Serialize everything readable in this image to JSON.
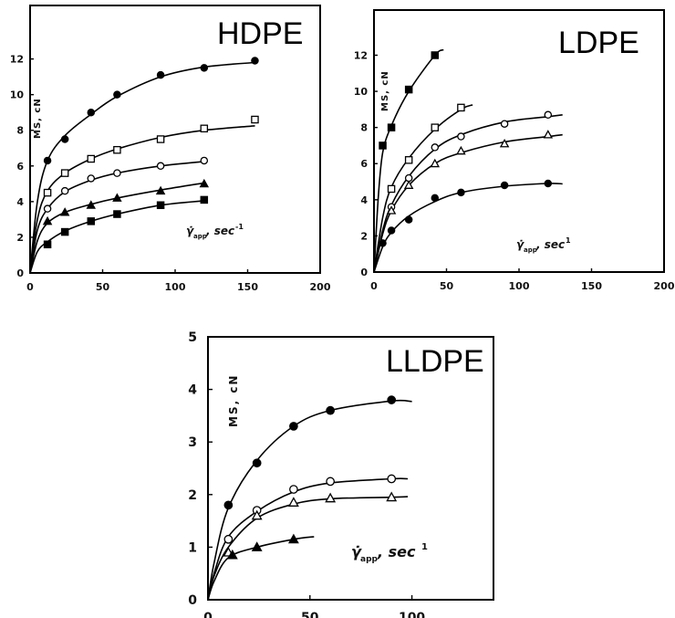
{
  "chart_data": [
    {
      "type": "scatter",
      "title": "HDPE",
      "ylabel": "MS, cN",
      "xlabel": {
        "symbol": "γ̇",
        "subscript": "app",
        "unit": ", sec",
        "superscript": "-1"
      },
      "xlim": [
        0,
        200
      ],
      "ylim": [
        0,
        15
      ],
      "xticks": [
        0,
        50,
        100,
        150,
        200
      ],
      "yticks": [
        0,
        2,
        4,
        6,
        8,
        10,
        12
      ],
      "grid": false,
      "series": [
        {
          "marker": "filled-circle",
          "x": [
            12,
            24,
            42,
            60,
            90,
            120,
            155
          ],
          "y": [
            6.3,
            7.5,
            9.0,
            10.0,
            11.1,
            11.5,
            11.9
          ]
        },
        {
          "marker": "open-square",
          "x": [
            12,
            24,
            42,
            60,
            90,
            120,
            155
          ],
          "y": [
            4.5,
            5.6,
            6.4,
            6.9,
            7.5,
            8.1,
            8.6
          ]
        },
        {
          "marker": "open-circle",
          "x": [
            12,
            24,
            42,
            60,
            90,
            120
          ],
          "y": [
            3.6,
            4.6,
            5.3,
            5.6,
            6.0,
            6.3
          ]
        },
        {
          "marker": "filled-triangle",
          "x": [
            12,
            24,
            42,
            60,
            90,
            120
          ],
          "y": [
            2.9,
            3.4,
            3.8,
            4.2,
            4.6,
            5.0
          ]
        },
        {
          "marker": "filled-square",
          "x": [
            12,
            24,
            42,
            60,
            90,
            120
          ],
          "y": [
            1.6,
            2.3,
            2.9,
            3.3,
            3.8,
            4.1
          ]
        }
      ]
    },
    {
      "type": "scatter",
      "title": "LDPE",
      "ylabel": "MS, cN",
      "xlabel": {
        "symbol": "γ̇",
        "subscript": "app",
        "unit": ", sec",
        "superscript": "1"
      },
      "xlim": [
        0,
        200
      ],
      "ylim": [
        0,
        14.5
      ],
      "xticks": [
        0,
        50,
        100,
        150,
        200
      ],
      "yticks": [
        0,
        2,
        4,
        6,
        8,
        10,
        12
      ],
      "grid": false,
      "series": [
        {
          "marker": "filled-square",
          "x": [
            6,
            12,
            24,
            42
          ],
          "y": [
            7.0,
            8.0,
            10.1,
            12.0
          ]
        },
        {
          "marker": "open-square",
          "x": [
            12,
            24,
            42,
            60
          ],
          "y": [
            4.6,
            6.2,
            8.0,
            9.1
          ]
        },
        {
          "marker": "open-circle",
          "x": [
            12,
            24,
            42,
            60,
            90,
            120
          ],
          "y": [
            3.6,
            5.2,
            6.9,
            7.5,
            8.2,
            8.7
          ]
        },
        {
          "marker": "open-triangle",
          "x": [
            12,
            24,
            42,
            60,
            90,
            120
          ],
          "y": [
            3.4,
            4.8,
            6.0,
            6.7,
            7.1,
            7.6
          ]
        },
        {
          "marker": "filled-circle",
          "x": [
            6,
            12,
            24,
            42,
            60,
            90,
            120
          ],
          "y": [
            1.6,
            2.3,
            2.9,
            4.1,
            4.4,
            4.8,
            4.9
          ]
        }
      ]
    },
    {
      "type": "scatter",
      "title": "LLDPE",
      "ylabel": "MS, cN",
      "xlabel": {
        "symbol": "γ̇",
        "subscript": "app",
        "unit": ", sec",
        "superscript": "1"
      },
      "xlim": [
        0,
        140
      ],
      "ylim": [
        0,
        5
      ],
      "xticks": [
        0,
        50,
        100
      ],
      "yticks": [
        0,
        1,
        2,
        3,
        4,
        5
      ],
      "grid": false,
      "series": [
        {
          "marker": "filled-circle",
          "x": [
            10,
            24,
            42,
            60,
            90
          ],
          "y": [
            1.8,
            2.6,
            3.3,
            3.6,
            3.8
          ]
        },
        {
          "marker": "open-circle",
          "x": [
            10,
            24,
            42,
            60,
            90
          ],
          "y": [
            1.15,
            1.7,
            2.1,
            2.25,
            2.3
          ]
        },
        {
          "marker": "open-triangle",
          "x": [
            10,
            24,
            42,
            60,
            90
          ],
          "y": [
            0.9,
            1.6,
            1.85,
            1.93,
            1.95
          ]
        },
        {
          "marker": "filled-triangle",
          "x": [
            12,
            24,
            42
          ],
          "y": [
            0.85,
            1.0,
            1.15
          ]
        }
      ]
    }
  ],
  "panels": [
    {
      "curves": [
        [
          [
            0,
            0
          ],
          [
            5,
            4
          ],
          [
            12,
            6.3
          ],
          [
            24,
            7.7
          ],
          [
            42,
            8.9
          ],
          [
            60,
            9.9
          ],
          [
            90,
            11.0
          ],
          [
            120,
            11.55
          ],
          [
            155,
            11.8
          ]
        ],
        [
          [
            0,
            0
          ],
          [
            5,
            3.0
          ],
          [
            12,
            4.6
          ],
          [
            24,
            5.6
          ],
          [
            42,
            6.4
          ],
          [
            60,
            6.95
          ],
          [
            90,
            7.6
          ],
          [
            120,
            8.0
          ],
          [
            155,
            8.25
          ]
        ],
        [
          [
            0,
            0
          ],
          [
            5,
            2.4
          ],
          [
            12,
            3.6
          ],
          [
            24,
            4.55
          ],
          [
            42,
            5.2
          ],
          [
            60,
            5.6
          ],
          [
            90,
            6.0
          ],
          [
            120,
            6.25
          ]
        ],
        [
          [
            0,
            0
          ],
          [
            5,
            1.8
          ],
          [
            12,
            2.8
          ],
          [
            24,
            3.4
          ],
          [
            42,
            3.85
          ],
          [
            60,
            4.2
          ],
          [
            90,
            4.65
          ],
          [
            120,
            5.05
          ]
        ],
        [
          [
            0,
            0
          ],
          [
            5,
            1.2
          ],
          [
            12,
            1.75
          ],
          [
            24,
            2.35
          ],
          [
            42,
            2.9
          ],
          [
            60,
            3.3
          ],
          [
            90,
            3.8
          ],
          [
            120,
            4.05
          ]
        ]
      ]
    },
    {
      "curves": [
        [
          [
            0,
            0
          ],
          [
            3,
            4.2
          ],
          [
            6,
            6.6
          ],
          [
            12,
            8.1
          ],
          [
            24,
            10.0
          ],
          [
            42,
            12.0
          ],
          [
            48,
            12.3
          ]
        ],
        [
          [
            0,
            0
          ],
          [
            6,
            3.0
          ],
          [
            12,
            4.7
          ],
          [
            24,
            6.3
          ],
          [
            42,
            7.9
          ],
          [
            60,
            9.0
          ],
          [
            68,
            9.25
          ]
        ],
        [
          [
            0,
            0
          ],
          [
            6,
            2.3
          ],
          [
            12,
            3.7
          ],
          [
            24,
            5.3
          ],
          [
            42,
            6.8
          ],
          [
            60,
            7.6
          ],
          [
            90,
            8.3
          ],
          [
            120,
            8.6
          ],
          [
            130,
            8.7
          ]
        ],
        [
          [
            0,
            0
          ],
          [
            6,
            2.1
          ],
          [
            12,
            3.4
          ],
          [
            24,
            4.8
          ],
          [
            42,
            6.0
          ],
          [
            60,
            6.6
          ],
          [
            90,
            7.2
          ],
          [
            120,
            7.5
          ],
          [
            130,
            7.6
          ]
        ],
        [
          [
            0,
            0
          ],
          [
            6,
            1.4
          ],
          [
            12,
            2.2
          ],
          [
            24,
            3.1
          ],
          [
            42,
            3.9
          ],
          [
            60,
            4.4
          ],
          [
            90,
            4.75
          ],
          [
            120,
            4.9
          ],
          [
            130,
            4.88
          ]
        ]
      ]
    },
    {
      "curves": [
        [
          [
            0,
            0
          ],
          [
            3,
            0.7
          ],
          [
            10,
            1.75
          ],
          [
            24,
            2.65
          ],
          [
            42,
            3.3
          ],
          [
            60,
            3.6
          ],
          [
            90,
            3.78
          ],
          [
            100,
            3.77
          ]
        ],
        [
          [
            0,
            0
          ],
          [
            3,
            0.5
          ],
          [
            10,
            1.2
          ],
          [
            24,
            1.68
          ],
          [
            42,
            2.05
          ],
          [
            60,
            2.22
          ],
          [
            90,
            2.3
          ],
          [
            98,
            2.3
          ]
        ],
        [
          [
            0,
            0
          ],
          [
            3,
            0.45
          ],
          [
            10,
            1.0
          ],
          [
            24,
            1.55
          ],
          [
            42,
            1.82
          ],
          [
            60,
            1.92
          ],
          [
            90,
            1.95
          ],
          [
            98,
            1.96
          ]
        ],
        [
          [
            0,
            0
          ],
          [
            3,
            0.35
          ],
          [
            10,
            0.8
          ],
          [
            24,
            1.0
          ],
          [
            42,
            1.15
          ],
          [
            52,
            1.2
          ]
        ]
      ]
    }
  ]
}
